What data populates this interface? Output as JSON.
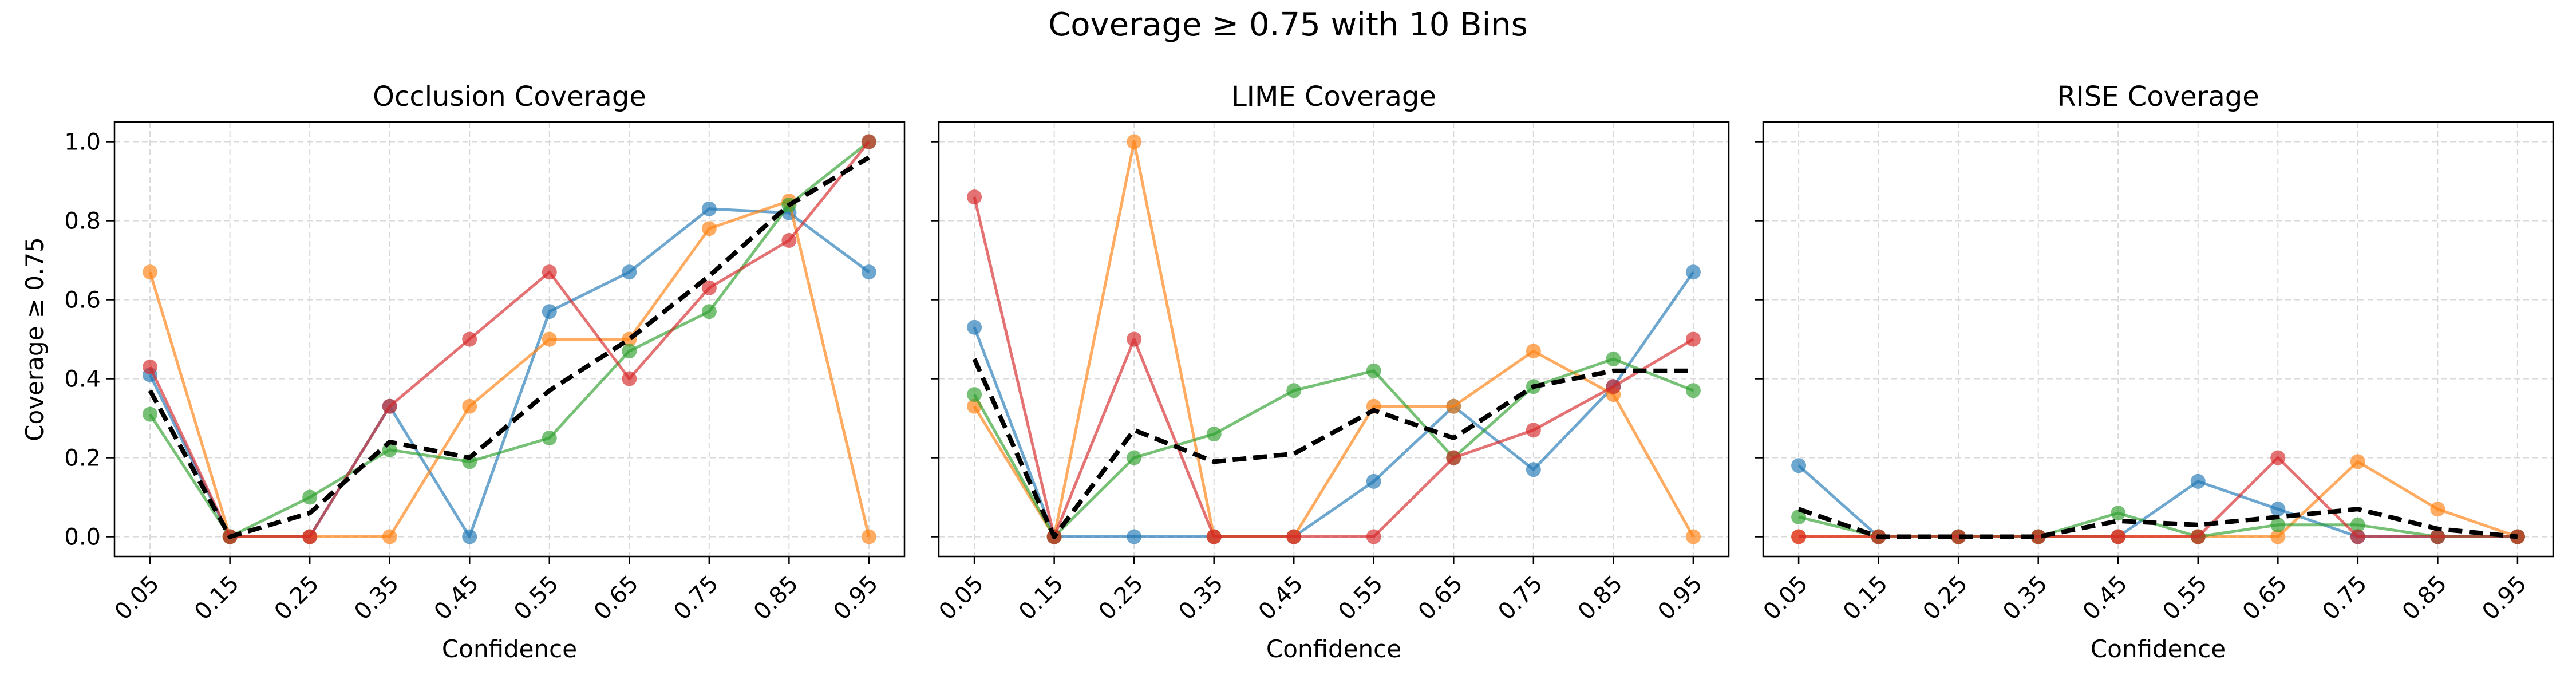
{
  "figure": {
    "title": "Coverage ≥ 0.75 with 10 Bins"
  },
  "colors": {
    "blue": "#1f77b4",
    "orange": "#ff7f0e",
    "green": "#2ca02c",
    "red": "#d62728",
    "mean": "#000000"
  },
  "chart_data": [
    {
      "type": "line",
      "title": "Occlusion Coverage",
      "xlabel": "Confidence",
      "ylabel": "Coverage ≥ 0.75",
      "categories": [
        "0.05",
        "0.15",
        "0.25",
        "0.35",
        "0.45",
        "0.55",
        "0.65",
        "0.75",
        "0.85",
        "0.95"
      ],
      "ylim": [
        -0.05,
        1.05
      ],
      "yticks": [
        "0.0",
        "0.2",
        "0.4",
        "0.6",
        "0.8",
        "1.0"
      ],
      "grid": true,
      "series": [
        {
          "color": "blue",
          "values": [
            0.41,
            0.0,
            0.0,
            0.33,
            0.0,
            0.57,
            0.67,
            0.83,
            0.82,
            0.67
          ]
        },
        {
          "color": "orange",
          "values": [
            0.67,
            0.0,
            0.0,
            0.0,
            0.33,
            0.5,
            0.5,
            0.78,
            0.85,
            0.0
          ]
        },
        {
          "color": "green",
          "values": [
            0.31,
            0.0,
            0.1,
            0.22,
            0.19,
            0.25,
            0.47,
            0.57,
            0.84,
            1.0
          ]
        },
        {
          "color": "red",
          "values": [
            0.43,
            0.0,
            0.0,
            0.33,
            0.5,
            0.67,
            0.4,
            0.63,
            0.75,
            1.0
          ]
        },
        {
          "color": "mean",
          "style": "dashed",
          "values": [
            0.37,
            0.0,
            0.06,
            0.24,
            0.2,
            0.37,
            0.5,
            0.66,
            0.84,
            0.96
          ]
        }
      ]
    },
    {
      "type": "line",
      "title": "LIME Coverage",
      "xlabel": "Confidence",
      "ylabel": "",
      "categories": [
        "0.05",
        "0.15",
        "0.25",
        "0.35",
        "0.45",
        "0.55",
        "0.65",
        "0.75",
        "0.85",
        "0.95"
      ],
      "ylim": [
        -0.05,
        1.05
      ],
      "yticks": [
        "0.0",
        "0.2",
        "0.4",
        "0.6",
        "0.8",
        "1.0"
      ],
      "grid": true,
      "series": [
        {
          "color": "blue",
          "values": [
            0.53,
            0.0,
            0.0,
            0.0,
            0.0,
            0.14,
            0.33,
            0.17,
            0.38,
            0.67
          ]
        },
        {
          "color": "orange",
          "values": [
            0.33,
            0.0,
            1.0,
            0.0,
            0.0,
            0.33,
            0.33,
            0.47,
            0.36,
            0.0
          ]
        },
        {
          "color": "green",
          "values": [
            0.36,
            0.0,
            0.2,
            0.26,
            0.37,
            0.42,
            0.2,
            0.38,
            0.45,
            0.37
          ]
        },
        {
          "color": "red",
          "values": [
            0.86,
            0.0,
            0.5,
            0.0,
            0.0,
            0.0,
            0.2,
            0.27,
            0.38,
            0.5
          ]
        },
        {
          "color": "mean",
          "style": "dashed",
          "values": [
            0.45,
            0.0,
            0.27,
            0.19,
            0.21,
            0.32,
            0.25,
            0.38,
            0.42,
            0.42
          ]
        }
      ]
    },
    {
      "type": "line",
      "title": "RISE Coverage",
      "xlabel": "Confidence",
      "ylabel": "",
      "categories": [
        "0.05",
        "0.15",
        "0.25",
        "0.35",
        "0.45",
        "0.55",
        "0.65",
        "0.75",
        "0.85",
        "0.95"
      ],
      "ylim": [
        -0.05,
        1.05
      ],
      "yticks": [
        "0.0",
        "0.2",
        "0.4",
        "0.6",
        "0.8",
        "1.0"
      ],
      "grid": true,
      "series": [
        {
          "color": "blue",
          "values": [
            0.18,
            0.0,
            0.0,
            0.0,
            0.0,
            0.14,
            0.07,
            0.0,
            0.0,
            0.0
          ]
        },
        {
          "color": "orange",
          "values": [
            0.0,
            0.0,
            0.0,
            0.0,
            0.0,
            0.0,
            0.0,
            0.19,
            0.07,
            0.0
          ]
        },
        {
          "color": "green",
          "values": [
            0.05,
            0.0,
            0.0,
            0.0,
            0.06,
            0.0,
            0.03,
            0.03,
            0.0,
            0.0
          ]
        },
        {
          "color": "red",
          "values": [
            0.0,
            0.0,
            0.0,
            0.0,
            0.0,
            0.0,
            0.2,
            0.0,
            0.0,
            0.0
          ]
        },
        {
          "color": "mean",
          "style": "dashed",
          "values": [
            0.07,
            0.0,
            0.0,
            0.0,
            0.04,
            0.03,
            0.05,
            0.07,
            0.02,
            0.0
          ]
        }
      ]
    }
  ]
}
